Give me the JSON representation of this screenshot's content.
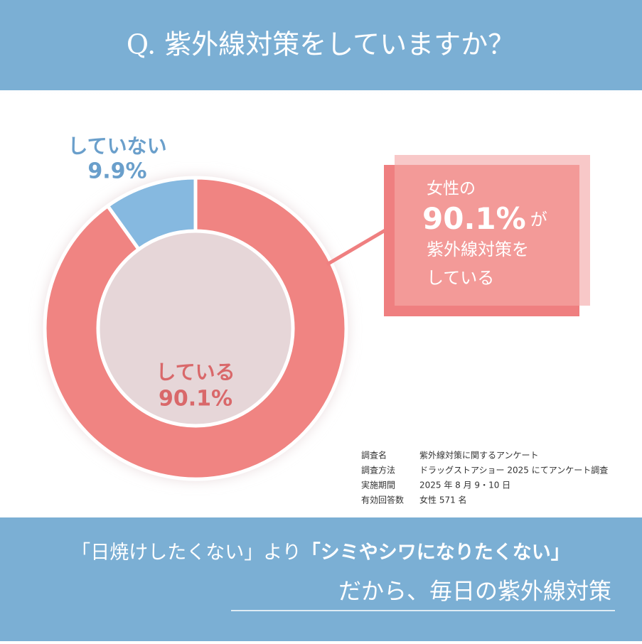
{
  "header": {
    "title": "Q. 紫外線対策をしていますか？"
  },
  "chart_data": {
    "type": "pie",
    "donut": true,
    "categories": [
      "している",
      "していない"
    ],
    "values": [
      90.1,
      9.9
    ],
    "value_labels": [
      "90.1%",
      "9.9%"
    ],
    "colors": [
      "#f08482",
      "#86b9e0"
    ],
    "label_colors": [
      "#d9686a",
      "#6a9fcb"
    ]
  },
  "callout": {
    "line1": "女性の",
    "figure": "90.1%",
    "suffix": "が",
    "line3": "紫外線対策を",
    "line4": "している"
  },
  "survey": {
    "rows": [
      [
        "調査名",
        "紫外線対策に関するアンケート"
      ],
      [
        "調査方法",
        "ドラッグストアショー 2025 にてアンケート調査"
      ],
      [
        "実施期間",
        "2025 年 8 月 9・10 日"
      ],
      [
        "有効回答数",
        "女性 571 名"
      ]
    ]
  },
  "footer": {
    "line1": [
      "「日焼けしたくない」より",
      "「シミやシワになりたくない」"
    ],
    "line2": "だから、毎日の紫外線対策"
  }
}
